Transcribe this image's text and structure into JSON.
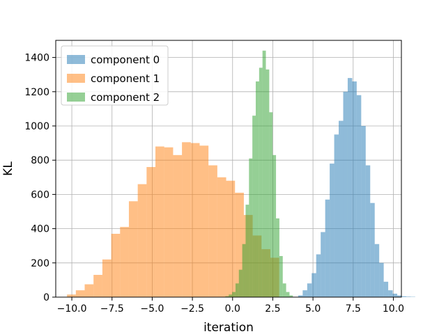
{
  "chart_data": {
    "type": "bar",
    "xlabel": "iteration",
    "ylabel": "KL",
    "xlim": [
      -11.0,
      10.5
    ],
    "ylim": [
      0,
      1500
    ],
    "x_ticks": [
      -10.0,
      -7.5,
      -5.0,
      -2.5,
      0.0,
      2.5,
      5.0,
      7.5,
      10.0
    ],
    "x_tick_labels": [
      "−10.0",
      "−7.5",
      "−5.0",
      "−2.5",
      "0.0",
      "2.5",
      "5.0",
      "7.5",
      "10.0"
    ],
    "y_ticks": [
      0,
      200,
      400,
      600,
      800,
      1000,
      1200,
      1400
    ],
    "y_tick_labels": [
      "0",
      "200",
      "400",
      "600",
      "800",
      "1000",
      "1200",
      "1400"
    ],
    "grid": true,
    "legend_position": "top-left",
    "series": [
      {
        "name": "component 0",
        "color": "#1f77b4",
        "alpha": 0.5,
        "bin_start": 4.08,
        "bin_width": 0.28,
        "counts": [
          10,
          40,
          80,
          140,
          250,
          380,
          570,
          780,
          950,
          1030,
          1200,
          1280,
          1260,
          1180,
          1000,
          770,
          550,
          310,
          200,
          90,
          40,
          20,
          10,
          5,
          3,
          2
        ]
      },
      {
        "name": "component 1",
        "color": "#ff7f0e",
        "alpha": 0.5,
        "bin_start": -10.3,
        "bin_width": 0.55,
        "counts": [
          15,
          40,
          75,
          130,
          220,
          370,
          410,
          560,
          660,
          760,
          880,
          875,
          830,
          905,
          900,
          885,
          770,
          700,
          680,
          610,
          480,
          360,
          280,
          230
        ]
      },
      {
        "name": "component 2",
        "color": "#2ca02c",
        "alpha": 0.5,
        "bin_start": -0.45,
        "bin_width": 0.21,
        "counts": [
          5,
          15,
          30,
          80,
          160,
          310,
          540,
          810,
          1060,
          1260,
          1340,
          1440,
          1330,
          1080,
          830,
          460,
          240,
          80,
          30,
          10
        ]
      }
    ]
  }
}
